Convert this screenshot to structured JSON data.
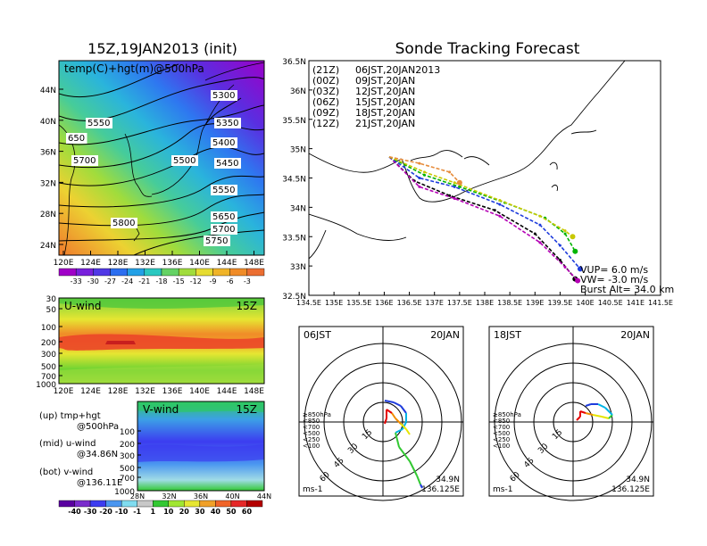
{
  "figure": {
    "init_title": "15Z,19JAN2013 (init)",
    "main_title": "Sonde Tracking Forecast"
  },
  "upper_map": {
    "label": "temp(C)+hgt(m)@500hPa",
    "lat_labels": [
      "44N",
      "40N",
      "36N",
      "32N",
      "28N",
      "24N"
    ],
    "lon_labels": [
      "120E",
      "124E",
      "128E",
      "132E",
      "136E",
      "140E",
      "144E",
      "148E"
    ],
    "contour_labels": [
      "5300",
      "5350",
      "5400",
      "5450",
      "5500",
      "5550",
      "5650",
      "5700",
      "5750",
      "5800",
      "5550",
      "5700",
      "650"
    ],
    "colorbar_labels": [
      "-33",
      "-30",
      "-27",
      "-24",
      "-21",
      "-18",
      "-15",
      "-12",
      "-9",
      "-6",
      "-3"
    ],
    "colorbar_colors": [
      "#a000c8",
      "#7820dc",
      "#5038e6",
      "#2c6ef0",
      "#22a0e6",
      "#2ac8c0",
      "#64d264",
      "#a0dc3c",
      "#e6dc32",
      "#f0b428",
      "#f08c28",
      "#eb6e32"
    ]
  },
  "u_wind": {
    "label": "U-wind",
    "time": "15Z",
    "p_labels": [
      "30",
      "50",
      "100",
      "200",
      "300",
      "500",
      "700",
      "1000"
    ],
    "lon_labels": [
      "120E",
      "124E",
      "128E",
      "132E",
      "136E",
      "140E",
      "144E",
      "148E"
    ]
  },
  "v_wind": {
    "label": "V-wind",
    "time": "15Z",
    "p_labels": [
      "100",
      "200",
      "300",
      "500",
      "700",
      "1000"
    ],
    "lat_labels": [
      "28N",
      "32N",
      "36N",
      "40N",
      "44N"
    ]
  },
  "legend_text": [
    {
      "line1": "(up)  tmp+hgt",
      "line2": "@500hPa"
    },
    {
      "line1": "(mid)  u-wind",
      "line2": "@34.86N"
    },
    {
      "line1": "(bot)  v-wind",
      "line2": "@136.11E"
    }
  ],
  "wind_colorbar": {
    "labels": [
      "-40",
      "-30",
      "-20",
      "-10",
      "-1",
      "1",
      "10",
      "20",
      "30",
      "40",
      "50",
      "60"
    ],
    "colors": [
      "#5a00a0",
      "#7a2ccc",
      "#3c3cf0",
      "#4a96f0",
      "#80dcf0",
      "#c8c8c8",
      "#32c832",
      "#a0e632",
      "#e6e632",
      "#f0a028",
      "#f06428",
      "#e62828",
      "#b40000"
    ]
  },
  "tracking_map": {
    "lat_labels": [
      "36.5N",
      "36N",
      "35.5N",
      "35N",
      "34.5N",
      "34N",
      "33.5N",
      "33N",
      "32.5N"
    ],
    "lon_labels": [
      "134.5E",
      "135E",
      "135.5E",
      "136E",
      "136.5E",
      "137E",
      "137.5E",
      "138E",
      "138.5E",
      "139E",
      "139.5E",
      "140E",
      "140.5E",
      "141E",
      "141.5E"
    ],
    "launches": [
      {
        "tag": "(21Z)",
        "time": "06JST,20JAN2013",
        "color": "#000000"
      },
      {
        "tag": "(00Z)",
        "time": "09JST,20JAN",
        "color": "#b400b4"
      },
      {
        "tag": "(03Z)",
        "time": "12JST,20JAN",
        "color": "#1e3cdc"
      },
      {
        "tag": "(06Z)",
        "time": "15JST,20JAN",
        "color": "#00b400"
      },
      {
        "tag": "(09Z)",
        "time": "18JST,20JAN",
        "color": "#c8c800"
      },
      {
        "tag": "(12Z)",
        "time": "21JST,20JAN",
        "color": "#e68c3c"
      }
    ],
    "vup": "VUP=  6.0  m/s",
    "vw": "VW=  -3.0  m/s",
    "burst": "Burst Alt=  34.0  km"
  },
  "hodographs": [
    {
      "left": "06JST",
      "right": "20JAN",
      "ring_labels": [
        "15",
        "30",
        "45",
        "60"
      ],
      "p_legend": [
        "≥850hPa",
        "<850",
        "<700",
        "<500",
        "<250",
        "<100"
      ],
      "p_colors": [
        "#e60000",
        "#f08c00",
        "#e6e600",
        "#32c832",
        "#00b4e6",
        "#1e3cdc"
      ],
      "unit": "ms-1",
      "loc1": "34.9N",
      "loc2": "136.125E"
    },
    {
      "left": "18JST",
      "right": "20JAN",
      "ring_labels": [
        "15",
        "30",
        "45",
        "60"
      ],
      "p_legend": [
        "≥850hPa",
        "<850",
        "<700",
        "<500",
        "<250",
        "<100"
      ],
      "p_colors": [
        "#e60000",
        "#f08c00",
        "#e6e600",
        "#32c832",
        "#00b4e6",
        "#1e3cdc"
      ],
      "unit": "ms-1",
      "loc1": "34.9N",
      "loc2": "136.125E"
    }
  ],
  "chart_data": {
    "type": "line",
    "title": "Sonde Tracking Forecast",
    "xlim": [
      134.5,
      141.5
    ],
    "ylim": [
      32.5,
      36.5
    ],
    "series": [
      {
        "name": "(21Z) 06JST,20JAN2013",
        "color": "#000000",
        "x": [
          136.1,
          136.6,
          137.3,
          138.2,
          139.0,
          139.5,
          139.8
        ],
        "y": [
          34.86,
          34.45,
          34.2,
          33.95,
          33.55,
          33.1,
          32.78
        ]
      },
      {
        "name": "(00Z) 09JST,20JAN",
        "color": "#b400b4",
        "x": [
          136.1,
          136.7,
          137.4,
          138.3,
          139.1,
          139.6,
          139.85
        ],
        "y": [
          34.86,
          34.35,
          34.15,
          33.85,
          33.4,
          32.98,
          32.75
        ]
      },
      {
        "name": "(03Z) 12JST,20JAN",
        "color": "#1e3cdc",
        "x": [
          136.1,
          136.7,
          137.4,
          138.3,
          139.1,
          139.5,
          139.9
        ],
        "y": [
          34.86,
          34.5,
          34.35,
          34.05,
          33.7,
          33.35,
          32.95
        ]
      },
      {
        "name": "(06Z) 15JST,20JAN",
        "color": "#00b400",
        "x": [
          136.1,
          136.8,
          137.5,
          138.4,
          139.2,
          139.6,
          139.8
        ],
        "y": [
          34.86,
          34.55,
          34.35,
          34.08,
          33.82,
          33.55,
          33.25
        ]
      },
      {
        "name": "(09Z) 18JST,20JAN",
        "color": "#c8c800",
        "x": [
          136.1,
          136.8,
          137.4,
          138.3,
          139.1,
          139.6,
          139.75
        ],
        "y": [
          34.86,
          34.6,
          34.42,
          34.12,
          33.85,
          33.6,
          33.5
        ]
      },
      {
        "name": "(12Z) 21JST,20JAN",
        "color": "#e68c3c",
        "x": [
          136.1,
          136.7,
          137.3,
          137.5
        ],
        "y": [
          34.86,
          34.75,
          34.6,
          34.42
        ]
      }
    ]
  }
}
